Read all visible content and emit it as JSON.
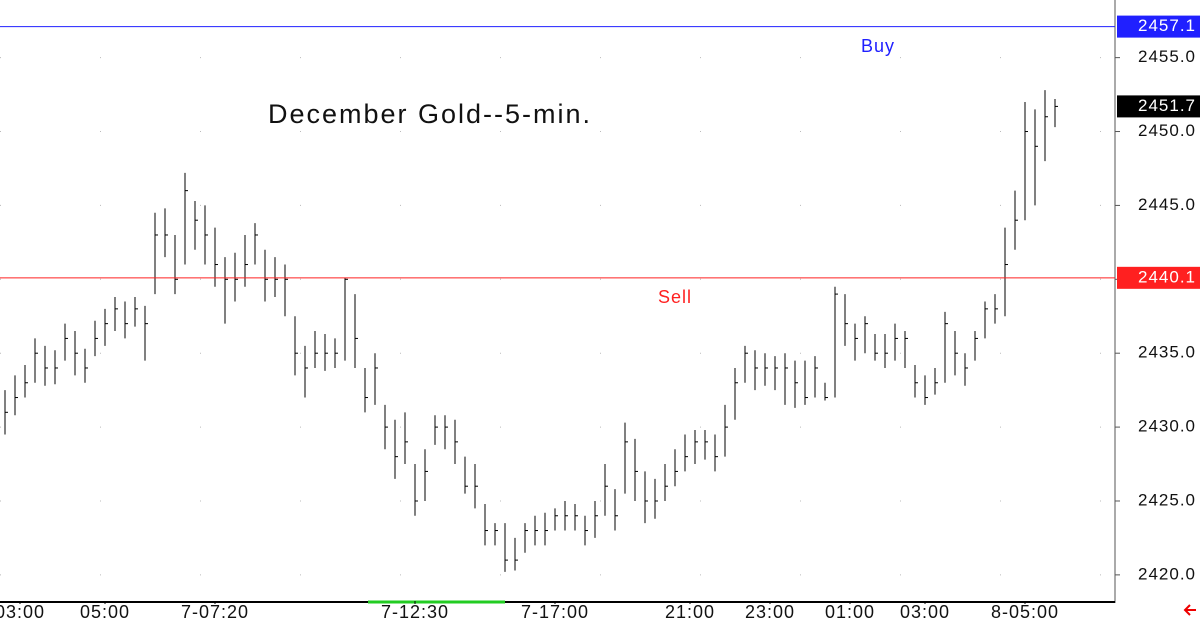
{
  "chart_data": {
    "type": "ohlc",
    "title": "December Gold--5-min.",
    "xlim": [
      0,
      111.5
    ],
    "ylim": [
      2418.3,
      2458.9
    ],
    "yticks": [
      {
        "value": 2420,
        "label": "2420.0"
      },
      {
        "value": 2425,
        "label": "2425.0"
      },
      {
        "value": 2430,
        "label": "2430.0"
      },
      {
        "value": 2435,
        "label": "2435.0"
      },
      {
        "value": 2440,
        "label": "2440.0"
      },
      {
        "value": 2445,
        "label": "2445.0"
      },
      {
        "value": 2450,
        "label": "2450.0"
      },
      {
        "value": 2455,
        "label": "2455.0"
      }
    ],
    "xticks": [
      {
        "value": 2,
        "label": "03:00"
      },
      {
        "value": 10.5,
        "label": "05:00"
      },
      {
        "value": 21.5,
        "label": "7-07:20"
      },
      {
        "value": 41.5,
        "label": "7-12:30"
      },
      {
        "value": 55.5,
        "label": "7-17:00"
      },
      {
        "value": 69,
        "label": "21:00"
      },
      {
        "value": 77,
        "label": "23:00"
      },
      {
        "value": 85,
        "label": "01:00"
      },
      {
        "value": 92.5,
        "label": "03:00"
      },
      {
        "value": 102.5,
        "label": "8-05:00"
      }
    ],
    "grid": true,
    "color": "#000000",
    "high": [
      2432.5,
      2433.5,
      2434.2,
      2436,
      2435.5,
      2435.2,
      2437,
      2436.5,
      2435.3,
      2437.2,
      2438,
      2438.8,
      2438.5,
      2438.8,
      2438.2,
      2444.5,
      2444.8,
      2443,
      2447.2,
      2445.3,
      2445,
      2443.5,
      2441.5,
      2441.8,
      2443,
      2443.8,
      2442,
      2441.5,
      2441,
      2437.5,
      2435.5,
      2436.5,
      2436.3,
      2436,
      2440.1,
      2439,
      2434,
      2435,
      2431.5,
      2430.5,
      2431,
      2427.5,
      2428.5,
      2430.8,
      2430.8,
      2430.5,
      2428,
      2427.5,
      2424.8,
      2423.5,
      2423.5,
      2422.5,
      2423.5,
      2424,
      2424.2,
      2424.5,
      2425,
      2424.8,
      2424,
      2425,
      2427.5,
      2425.8,
      2430.3,
      2429.2,
      2427,
      2426.5,
      2427.5,
      2428.5,
      2429.5,
      2429.8,
      2429.8,
      2429.5,
      2431.5,
      2434,
      2435.5,
      2435.2,
      2435,
      2434.8,
      2435,
      2434.5,
      2434.5,
      2434.8,
      2433,
      2439.5,
      2439,
      2437,
      2437.5,
      2436.3,
      2436.3,
      2437,
      2436.5,
      2434.2,
      2433.5,
      2434,
      2437.8,
      2436.5,
      2435,
      2436.5,
      2438.5,
      2439,
      2443.5,
      2446,
      2452,
      2451.5,
      2452.8,
      2452.2
    ],
    "low": [
      2429.5,
      2430.8,
      2432,
      2433,
      2432.8,
      2432.9,
      2434.5,
      2433.5,
      2433,
      2434.8,
      2435.5,
      2436.5,
      2436,
      2436.8,
      2434.5,
      2439,
      2441.5,
      2439,
      2441,
      2442,
      2441,
      2439.5,
      2437,
      2438.5,
      2439.5,
      2441,
      2438.5,
      2438.8,
      2437.5,
      2433.5,
      2432,
      2434,
      2433.8,
      2434,
      2434.5,
      2434,
      2431,
      2431.5,
      2428.5,
      2426.5,
      2427.5,
      2424,
      2425,
      2428.8,
      2428.5,
      2427.5,
      2425.5,
      2424.5,
      2422,
      2422,
      2420.2,
      2420.3,
      2421.5,
      2422,
      2422,
      2423,
      2423,
      2423,
      2422,
      2422.5,
      2424,
      2423,
      2425.5,
      2425,
      2423.5,
      2423.8,
      2425,
      2426,
      2427,
      2427.5,
      2427.8,
      2427,
      2428,
      2430.5,
      2433,
      2432.5,
      2432.8,
      2432.5,
      2431.5,
      2431.3,
      2431.5,
      2432,
      2431.8,
      2432,
      2435.5,
      2434.5,
      2435,
      2434.5,
      2434,
      2434.5,
      2434,
      2432,
      2431.5,
      2432.2,
      2433,
      2433.5,
      2432.8,
      2434.5,
      2436,
      2437,
      2437.5,
      2442,
      2444,
      2445,
      2448,
      2450.3
    ],
    "close": [
      2431,
      2432,
      2433,
      2435,
      2434,
      2434,
      2436,
      2435,
      2434,
      2436,
      2437,
      2438,
      2437,
      2438,
      2437,
      2443,
      2443,
      2440,
      2446,
      2444,
      2443,
      2441,
      2440,
      2440,
      2441,
      2443,
      2440,
      2440,
      2440,
      2435,
      2434,
      2435,
      2435,
      2435,
      2440,
      2436,
      2432,
      2434,
      2430,
      2428,
      2429,
      2425,
      2427,
      2430,
      2430,
      2429,
      2426,
      2426,
      2423,
      2423,
      2421,
      2421,
      2423,
      2423,
      2423,
      2424,
      2424,
      2424,
      2423,
      2424,
      2426,
      2424,
      2429,
      2427,
      2425,
      2425,
      2426,
      2427,
      2428,
      2429,
      2429,
      2428,
      2430,
      2433,
      2435,
      2434,
      2434,
      2434,
      2434,
      2433,
      2432,
      2434,
      2432,
      2439,
      2437,
      2436,
      2437,
      2435,
      2435,
      2436,
      2436,
      2433,
      2432,
      2433,
      2437,
      2435,
      2434,
      2436,
      2438,
      2438,
      2441,
      2444,
      2450,
      2449,
      2451,
      2451.7
    ],
    "levels": [
      {
        "name": "Buy",
        "value": 2457.1,
        "color": "#2020ff"
      },
      {
        "name": "Sell",
        "value": 2440.1,
        "color": "#ff2020"
      }
    ],
    "last_price": {
      "value": 2451.7,
      "color": "#000000"
    }
  }
}
